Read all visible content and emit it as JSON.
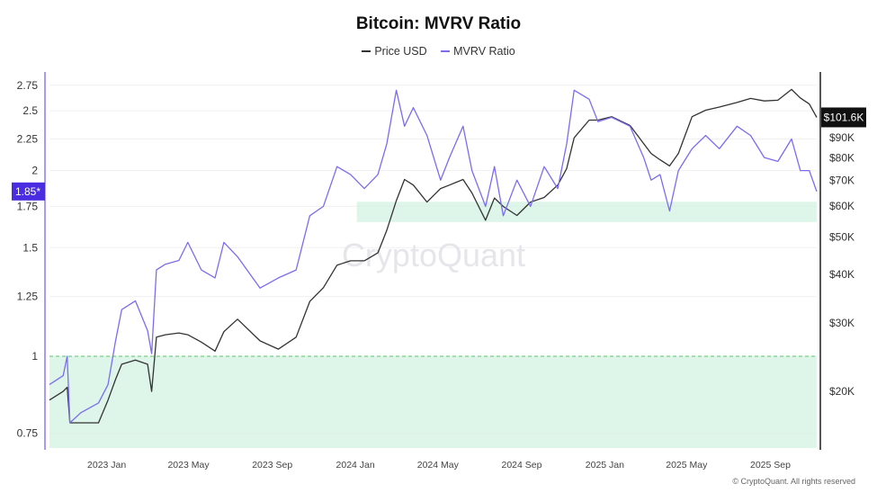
{
  "chart_data": {
    "type": "line",
    "title": "Bitcoin: MVRV Ratio",
    "watermark": "CryptoQuant",
    "footer": "© CryptoQuant. All rights reserved",
    "y_scale": "log",
    "y2_scale": "log",
    "grid": "horizontal",
    "legend_placement": "top-center",
    "x_ticks": [
      "2023 Jan",
      "2023 May",
      "2023 Sep",
      "2024 Jan",
      "2024 May",
      "2024 Sep",
      "2025 Jan",
      "2025 May",
      "2025 Sep"
    ],
    "x_tick_dates": [
      "2023-01-01",
      "2023-05-01",
      "2023-09-01",
      "2024-01-01",
      "2024-05-01",
      "2024-09-01",
      "2025-01-01",
      "2025-05-01",
      "2025-09-01"
    ],
    "xlim": [
      "2022-10-09",
      "2025-11-08"
    ],
    "y_ticks": [
      0.75,
      1,
      1.25,
      1.5,
      1.75,
      2,
      2.25,
      2.5,
      2.75
    ],
    "ylim": [
      0.71,
      2.89
    ],
    "y2_ticks": [
      "$20K",
      "$30K",
      "$40K",
      "$50K",
      "$60K",
      "$70K",
      "$80K",
      "$90K"
    ],
    "y2_tick_values": [
      20000,
      30000,
      40000,
      50000,
      60000,
      70000,
      80000,
      90000
    ],
    "y2lim": [
      14300,
      133000
    ],
    "current_mvrv_label": "1.85*",
    "current_price_label": "$101.6K",
    "colors": {
      "price": "#333333",
      "mvrv": "#7b6cf0",
      "zone": "#d6f2e3",
      "threshold": "#5fc36a",
      "mvrv_badge": "#4a2de0"
    },
    "zones": [
      {
        "axis": "mvrv",
        "from": 0.71,
        "to": 1.0,
        "start": "2022-10-09",
        "end": "2025-11-08"
      },
      {
        "axis": "mvrv",
        "from": 1.65,
        "to": 1.78,
        "start": "2024-01-03",
        "end": "2025-11-08"
      }
    ],
    "threshold": 1.0,
    "dates": [
      "2022-10-09",
      "2022-10-29",
      "2022-11-04",
      "2022-11-08",
      "2022-11-24",
      "2022-12-20",
      "2023-01-03",
      "2023-01-14",
      "2023-01-23",
      "2023-02-12",
      "2023-03-02",
      "2023-03-08",
      "2023-03-15",
      "2023-03-28",
      "2023-04-17",
      "2023-04-30",
      "2023-05-20",
      "2023-06-09",
      "2023-06-22",
      "2023-07-12",
      "2023-08-14",
      "2023-09-10",
      "2023-10-06",
      "2023-10-26",
      "2023-11-15",
      "2023-12-05",
      "2023-12-25",
      "2024-01-14",
      "2024-02-03",
      "2024-02-16",
      "2024-03-01",
      "2024-03-13",
      "2024-03-26",
      "2024-04-15",
      "2024-05-05",
      "2024-05-18",
      "2024-06-07",
      "2024-06-20",
      "2024-07-10",
      "2024-07-23",
      "2024-08-05",
      "2024-08-25",
      "2024-09-14",
      "2024-10-04",
      "2024-10-24",
      "2024-11-06",
      "2024-11-17",
      "2024-12-09",
      "2024-12-22",
      "2025-01-11",
      "2025-02-07",
      "2025-02-27",
      "2025-03-10",
      "2025-03-23",
      "2025-04-06",
      "2025-04-19",
      "2025-05-09",
      "2025-05-29",
      "2025-06-18",
      "2025-07-14",
      "2025-08-03",
      "2025-08-23",
      "2025-09-12",
      "2025-10-02",
      "2025-10-15",
      "2025-10-28",
      "2025-11-08"
    ],
    "series": [
      {
        "name": "Price USD",
        "axis": "right",
        "values": [
          19000,
          20000,
          20500,
          16600,
          16600,
          16600,
          19000,
          21500,
          23500,
          24100,
          23500,
          20000,
          27600,
          28000,
          28300,
          28000,
          26800,
          25400,
          28500,
          30700,
          27000,
          25700,
          27600,
          34100,
          37000,
          42300,
          43400,
          43400,
          45500,
          52000,
          62000,
          70300,
          68000,
          61500,
          66600,
          68000,
          70300,
          64900,
          55200,
          63000,
          59900,
          56800,
          61500,
          63200,
          68000,
          75000,
          90000,
          100000,
          100000,
          102000,
          96900,
          87000,
          82000,
          79000,
          76200,
          82000,
          102000,
          106000,
          108000,
          111000,
          113700,
          112000,
          112500,
          119900,
          114000,
          110000,
          101600
        ]
      },
      {
        "name": "MVRV Ratio",
        "axis": "left",
        "values": [
          0.9,
          0.93,
          1.0,
          0.78,
          0.81,
          0.84,
          0.9,
          1.06,
          1.19,
          1.23,
          1.1,
          1.01,
          1.38,
          1.41,
          1.43,
          1.53,
          1.38,
          1.34,
          1.53,
          1.45,
          1.29,
          1.34,
          1.38,
          1.69,
          1.75,
          2.03,
          1.97,
          1.87,
          1.97,
          2.21,
          2.7,
          2.36,
          2.53,
          2.28,
          1.93,
          2.1,
          2.36,
          2.0,
          1.75,
          2.03,
          1.69,
          1.93,
          1.75,
          2.03,
          1.87,
          2.21,
          2.7,
          2.61,
          2.4,
          2.44,
          2.36,
          2.1,
          1.93,
          1.97,
          1.72,
          2.0,
          2.17,
          2.28,
          2.17,
          2.36,
          2.28,
          2.1,
          2.07,
          2.25,
          2.0,
          2.0,
          1.85
        ]
      }
    ]
  }
}
